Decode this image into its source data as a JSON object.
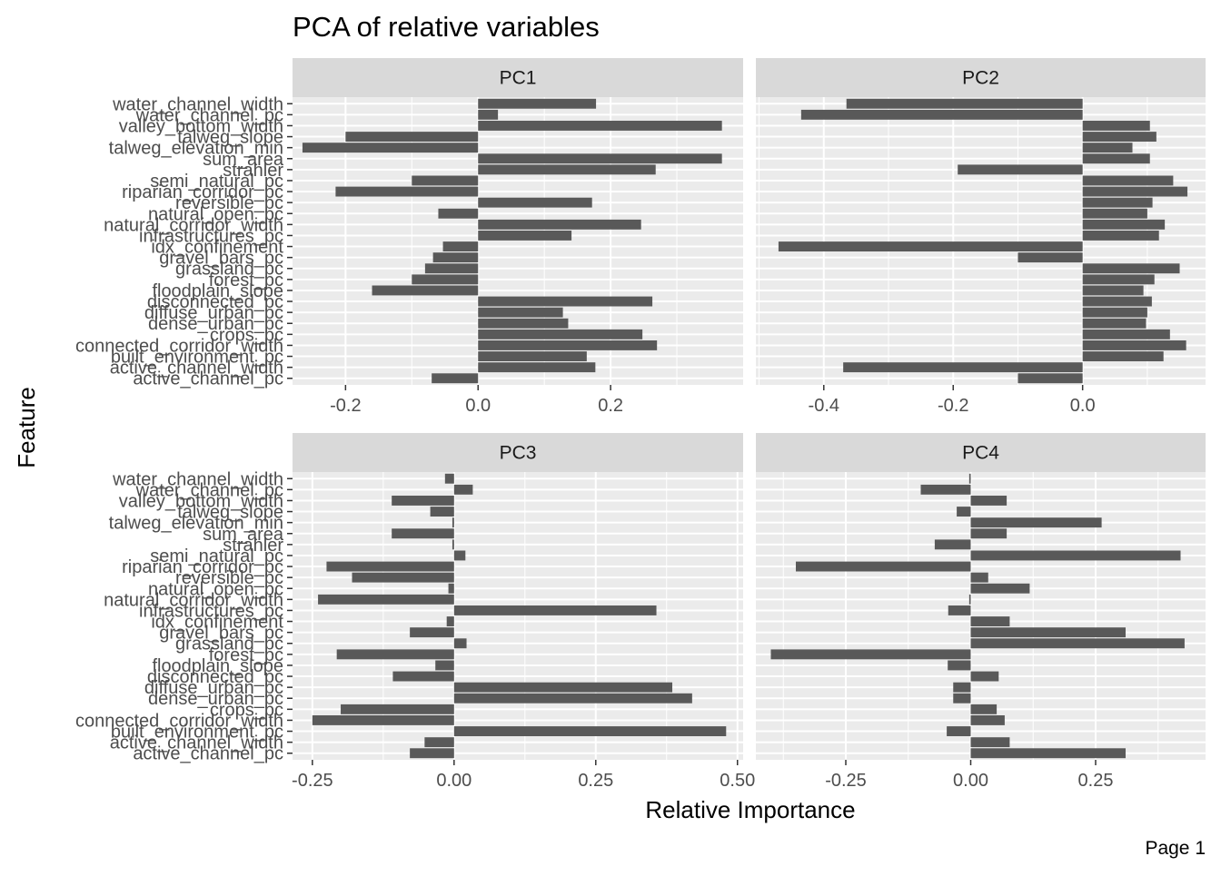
{
  "page_label": "Page 1",
  "chart_data": {
    "type": "bar",
    "orientation": "horizontal",
    "title": "PCA of relative variables",
    "xlabel": "Relative Importance",
    "ylabel": "Feature",
    "colors": {
      "bar": "#595959",
      "panel_bg": "#ebebeb",
      "strip_bg": "#d9d9d9",
      "grid": "#ffffff",
      "text": "#4d4d4d"
    },
    "categories": [
      "water_channel_width",
      "water_channel_pc",
      "valley_bottom_width",
      "talweg_slope",
      "talweg_elevation_min",
      "sum_area",
      "strahler",
      "semi_natural_pc",
      "riparian_corridor_pc",
      "reversible_pc",
      "natural_open_pc",
      "natural_corridor_width",
      "infrastructures_pc",
      "idx_confinement",
      "gravel_bars_pc",
      "grassland_pc",
      "forest_pc",
      "floodplain_slope",
      "disconnected_pc",
      "diffuse_urban_pc",
      "dense_urban_pc",
      "crops_pc",
      "connected_corridor_width",
      "built_environment_pc",
      "active_channel_width",
      "active_channel_pc"
    ],
    "panels": [
      {
        "name": "PC1",
        "xlim": [
          -0.28,
          0.4
        ],
        "ticks": [
          -0.2,
          0.0,
          0.2
        ],
        "tick_labels": [
          "-0.2",
          "0.0",
          "0.2"
        ],
        "values": [
          0.178,
          0.03,
          0.368,
          -0.2,
          -0.265,
          0.368,
          0.268,
          -0.1,
          -0.215,
          0.172,
          -0.06,
          0.246,
          0.141,
          -0.053,
          -0.068,
          -0.08,
          -0.1,
          -0.16,
          0.263,
          0.128,
          0.136,
          0.248,
          0.27,
          0.164,
          0.177,
          -0.07
        ]
      },
      {
        "name": "PC2",
        "xlim": [
          -0.505,
          0.19
        ],
        "ticks": [
          -0.4,
          -0.2,
          0.0
        ],
        "tick_labels": [
          "-0.4",
          "-0.2",
          "0.0"
        ],
        "values": [
          -0.365,
          -0.435,
          0.104,
          0.114,
          0.077,
          0.104,
          -0.193,
          0.14,
          0.162,
          0.108,
          0.1,
          0.127,
          0.118,
          -0.47,
          -0.1,
          0.15,
          0.111,
          0.094,
          0.107,
          0.1,
          0.098,
          0.135,
          0.16,
          0.125,
          -0.37,
          -0.1
        ]
      },
      {
        "name": "PC3",
        "xlim": [
          -0.285,
          0.51
        ],
        "ticks": [
          -0.25,
          0.0,
          0.25,
          0.5
        ],
        "tick_labels": [
          "-0.25",
          "0.00",
          "0.25",
          "0.50"
        ],
        "values": [
          -0.016,
          0.033,
          -0.11,
          -0.042,
          -0.003,
          -0.11,
          -0.003,
          0.02,
          -0.225,
          -0.18,
          -0.01,
          -0.24,
          0.357,
          -0.013,
          -0.078,
          0.022,
          -0.207,
          -0.033,
          -0.108,
          0.385,
          0.42,
          -0.2,
          -0.25,
          0.48,
          -0.052,
          -0.078
        ]
      },
      {
        "name": "PC4",
        "xlim": [
          -0.43,
          0.47
        ],
        "ticks": [
          -0.25,
          0.0,
          0.25
        ],
        "tick_labels": [
          "-0.25",
          "0.00",
          "0.25"
        ],
        "values": [
          -0.003,
          -0.1,
          0.072,
          -0.028,
          0.262,
          0.072,
          -0.072,
          0.42,
          -0.35,
          0.035,
          0.118,
          -0.003,
          -0.045,
          0.078,
          0.31,
          0.428,
          -0.4,
          -0.046,
          0.056,
          -0.035,
          -0.035,
          0.052,
          0.068,
          -0.048,
          0.078,
          0.31
        ]
      }
    ],
    "grid": true,
    "legend": "none"
  }
}
